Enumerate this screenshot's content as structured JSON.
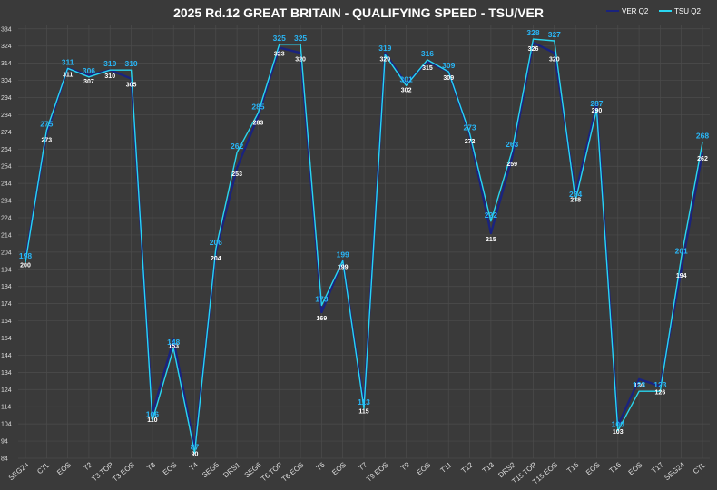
{
  "chart_data": {
    "type": "line",
    "title": "2025 Rd.12 GREAT BRITAIN - QUALIFYING SPEED - TSU/VER",
    "xlabel": "",
    "ylabel": "",
    "ylim": [
      84,
      336
    ],
    "yticks": [
      84,
      94,
      104,
      114,
      124,
      134,
      144,
      154,
      164,
      174,
      184,
      194,
      204,
      214,
      224,
      234,
      244,
      254,
      264,
      274,
      284,
      294,
      304,
      314,
      324,
      334
    ],
    "grid": true,
    "legend": "top-right",
    "categories": [
      "SEG24",
      "CTL",
      "EOS",
      "T2",
      "T3 TOP",
      "T3 EOS",
      "T3",
      "EOS",
      "T4",
      "SEG5",
      "DRS1",
      "SEG6",
      "T6 TOP",
      "T6 EOS",
      "T6",
      "EOS",
      "T7",
      "T9 EOS",
      "T9",
      "EOS",
      "T11",
      "T12",
      "T13",
      "DRS2",
      "T15 TOP",
      "T15 EOS",
      "T15",
      "EOS",
      "T16",
      "EOS",
      "T17",
      "SEG24",
      "CTL"
    ],
    "series": [
      {
        "name": "VER Q2",
        "color": "#1a237e",
        "values": [
          200,
          273,
          311,
          307,
          310,
          305,
          110,
          153,
          90,
          204,
          253,
          283,
          323,
          320,
          169,
          199,
          115,
          320,
          302,
          315,
          309,
          272,
          215,
          259,
          326,
          320,
          238,
          290,
          103,
          130,
          126,
          194,
          262
        ]
      },
      {
        "name": "TSU Q2",
        "color": "#29d6f0",
        "values": [
          198,
          275,
          311,
          306,
          310,
          310,
          106,
          148,
          87,
          206,
          262,
          285,
          325,
          325,
          173,
          199,
          113,
          319,
          301,
          316,
          309,
          273,
          222,
          263,
          328,
          327,
          234,
          287,
          100,
          123,
          123,
          201,
          268
        ]
      }
    ]
  }
}
